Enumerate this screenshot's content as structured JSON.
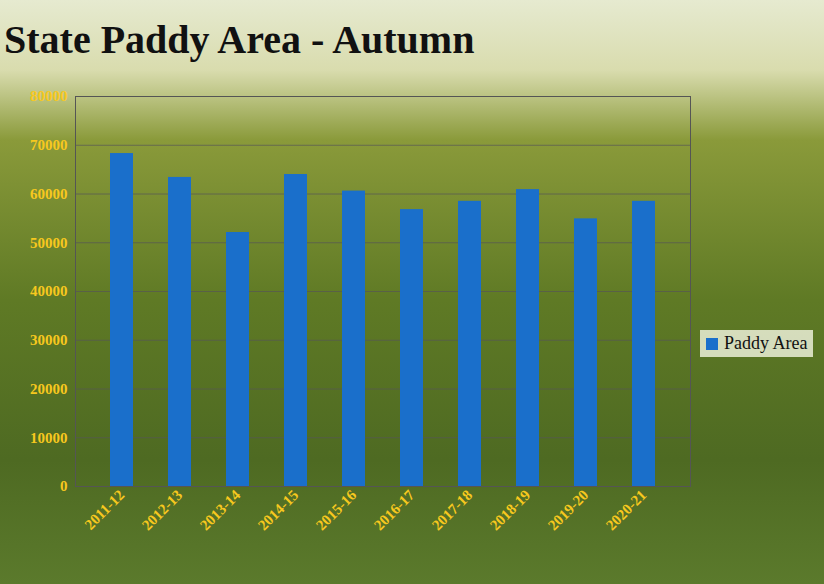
{
  "chart_data": {
    "type": "bar",
    "title": "State Paddy Area - Autumn",
    "categories": [
      "2011-12",
      "2012-13",
      "2013-14",
      "2014-15",
      "2015-16",
      "2016-17",
      "2017-18",
      "2018-19",
      "2019-20",
      "2020-21"
    ],
    "series": [
      {
        "name": "Paddy Area",
        "color": "#1a6fcb",
        "values": [
          68300,
          63400,
          52100,
          64000,
          60600,
          56800,
          58500,
          60900,
          54900,
          58500
        ]
      }
    ],
    "ylim": [
      0,
      80000
    ],
    "yticks": [
      0,
      10000,
      20000,
      30000,
      40000,
      50000,
      60000,
      70000,
      80000
    ],
    "grid": true,
    "legend": "right"
  }
}
